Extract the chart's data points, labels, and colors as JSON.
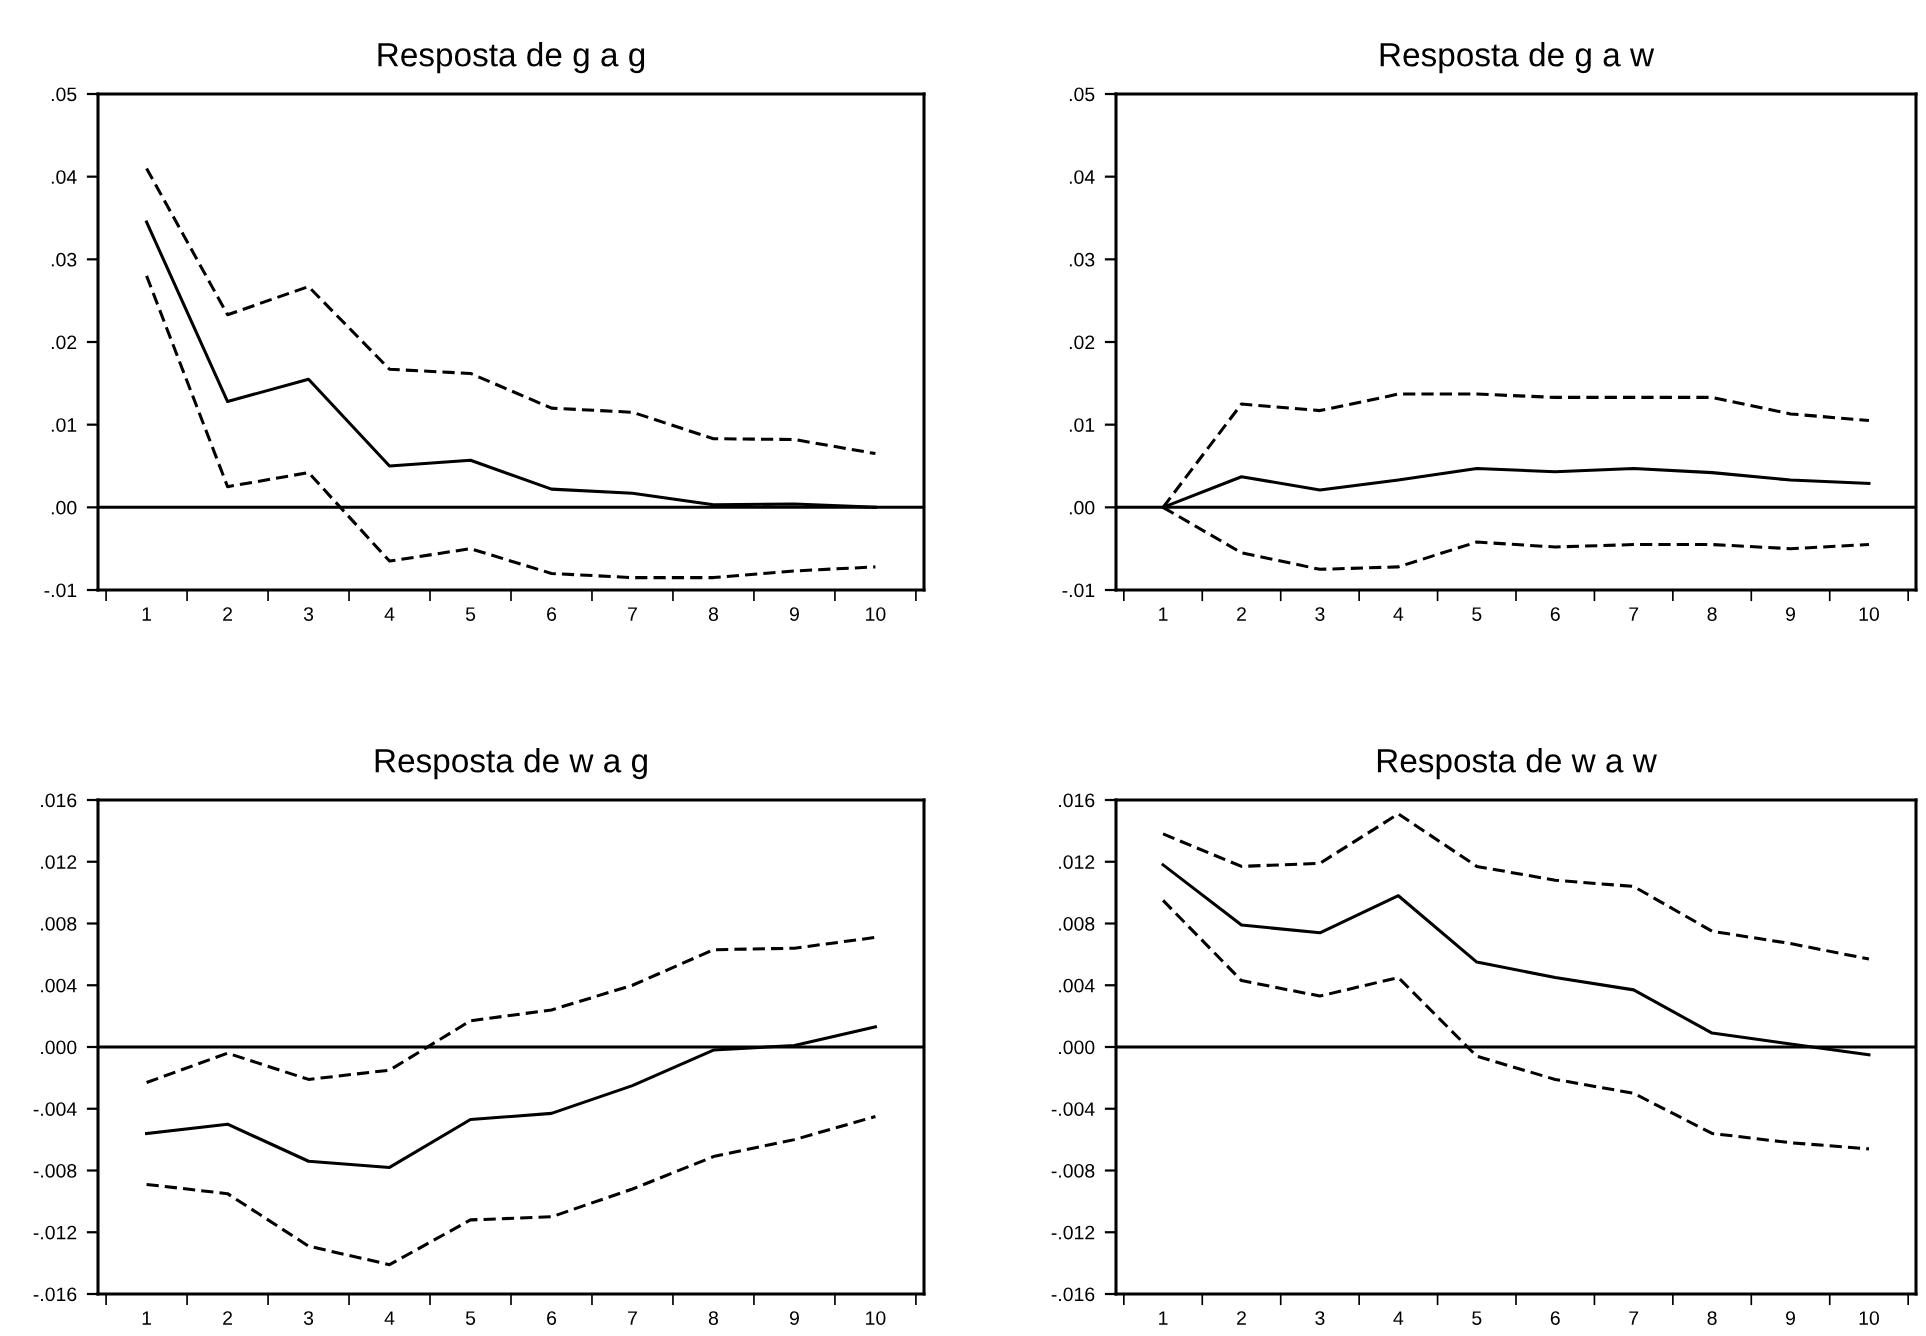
{
  "chart_data": [
    {
      "type": "line",
      "title": "Resposta de g a g",
      "categories": [
        "1",
        "2",
        "3",
        "4",
        "5",
        "6",
        "7",
        "8",
        "9",
        "10"
      ],
      "series": [
        {
          "color": "#000000",
          "line_style": "solid",
          "values": [
            0.0345,
            0.0128,
            0.0155,
            0.005,
            0.0057,
            0.0022,
            0.0017,
            0.0003,
            0.0004,
            0.0
          ]
        },
        {
          "color": "#000000",
          "line_style": "dashed",
          "values": [
            0.041,
            0.0233,
            0.0267,
            0.0167,
            0.0162,
            0.012,
            0.0115,
            0.0083,
            0.0082,
            0.0065
          ]
        },
        {
          "color": "#000000",
          "line_style": "dashed",
          "values": [
            0.028,
            0.0025,
            0.0042,
            -0.0065,
            -0.005,
            -0.008,
            -0.0085,
            -0.0085,
            -0.0077,
            -0.0072
          ]
        }
      ],
      "ylim": [
        -0.01,
        0.05
      ],
      "yticks": [
        {
          "value": -0.01,
          "label": "-.01"
        },
        {
          "value": 0,
          "label": ".00"
        },
        {
          "value": 0.01,
          "label": ".01"
        },
        {
          "value": 0.02,
          "label": ".02"
        },
        {
          "value": 0.03,
          "label": ".03"
        },
        {
          "value": 0.04,
          "label": ".04"
        },
        {
          "value": 0.05,
          "label": ".05"
        }
      ],
      "ref_lines": [
        {
          "axis": "y",
          "value": 0,
          "color": "#000000",
          "line_style": "solid"
        }
      ],
      "grid": false,
      "legend": false
    },
    {
      "type": "line",
      "title": "Resposta de g a w",
      "categories": [
        "1",
        "2",
        "3",
        "4",
        "5",
        "6",
        "7",
        "8",
        "9",
        "10"
      ],
      "series": [
        {
          "color": "#000000",
          "line_style": "solid",
          "values": [
            0.0,
            0.0037,
            0.0021,
            0.0033,
            0.0047,
            0.0043,
            0.0047,
            0.0042,
            0.0033,
            0.0029
          ]
        },
        {
          "color": "#000000",
          "line_style": "dashed",
          "values": [
            0.0,
            0.0125,
            0.0117,
            0.0137,
            0.0137,
            0.0133,
            0.0133,
            0.0133,
            0.0113,
            0.0105
          ]
        },
        {
          "color": "#000000",
          "line_style": "dashed",
          "values": [
            0.0,
            -0.0055,
            -0.0075,
            -0.0072,
            -0.0042,
            -0.0048,
            -0.0045,
            -0.0045,
            -0.005,
            -0.0045
          ]
        }
      ],
      "ylim": [
        -0.01,
        0.05
      ],
      "yticks": [
        {
          "value": -0.01,
          "label": "-.01"
        },
        {
          "value": 0,
          "label": ".00"
        },
        {
          "value": 0.01,
          "label": ".01"
        },
        {
          "value": 0.02,
          "label": ".02"
        },
        {
          "value": 0.03,
          "label": ".03"
        },
        {
          "value": 0.04,
          "label": ".04"
        },
        {
          "value": 0.05,
          "label": ".05"
        }
      ],
      "ref_lines": [
        {
          "axis": "y",
          "value": 0,
          "color": "#000000",
          "line_style": "solid"
        }
      ],
      "grid": false,
      "legend": false
    },
    {
      "type": "line",
      "title": "Resposta de w a g",
      "categories": [
        "1",
        "2",
        "3",
        "4",
        "5",
        "6",
        "7",
        "8",
        "9",
        "10"
      ],
      "series": [
        {
          "color": "#000000",
          "line_style": "solid",
          "values": [
            -0.0056,
            -0.005,
            -0.0074,
            -0.0078,
            -0.0047,
            -0.0043,
            -0.0025,
            -0.0002,
            0.0001,
            0.0013
          ]
        },
        {
          "color": "#000000",
          "line_style": "dashed",
          "values": [
            -0.0023,
            -0.0004,
            -0.0021,
            -0.0015,
            0.0017,
            0.0024,
            0.004,
            0.0063,
            0.0064,
            0.0071
          ]
        },
        {
          "color": "#000000",
          "line_style": "dashed",
          "values": [
            -0.0089,
            -0.0095,
            -0.0129,
            -0.0141,
            -0.0112,
            -0.011,
            -0.0092,
            -0.0071,
            -0.006,
            -0.0045
          ]
        }
      ],
      "ylim": [
        -0.016,
        0.016
      ],
      "yticks": [
        {
          "value": -0.016,
          "label": "-.016"
        },
        {
          "value": -0.012,
          "label": "-.012"
        },
        {
          "value": -0.008,
          "label": "-.008"
        },
        {
          "value": -0.004,
          "label": "-.004"
        },
        {
          "value": 0,
          "label": ".000"
        },
        {
          "value": 0.004,
          "label": ".004"
        },
        {
          "value": 0.008,
          "label": ".008"
        },
        {
          "value": 0.012,
          "label": ".012"
        },
        {
          "value": 0.016,
          "label": ".016"
        }
      ],
      "ref_lines": [
        {
          "axis": "y",
          "value": 0,
          "color": "#000000",
          "line_style": "solid"
        }
      ],
      "grid": false,
      "legend": false
    },
    {
      "type": "line",
      "title": "Resposta de w a w",
      "categories": [
        "1",
        "2",
        "3",
        "4",
        "5",
        "6",
        "7",
        "8",
        "9",
        "10"
      ],
      "series": [
        {
          "color": "#000000",
          "line_style": "solid",
          "values": [
            0.0118,
            0.0079,
            0.0074,
            0.0098,
            0.0055,
            0.0045,
            0.0037,
            0.0009,
            0.0002,
            -0.0005
          ]
        },
        {
          "color": "#000000",
          "line_style": "dashed",
          "values": [
            0.0138,
            0.0117,
            0.0119,
            0.0151,
            0.0117,
            0.0108,
            0.0104,
            0.0075,
            0.0067,
            0.0057
          ]
        },
        {
          "color": "#000000",
          "line_style": "dashed",
          "values": [
            0.0095,
            0.0043,
            0.0033,
            0.0045,
            -0.0006,
            -0.0021,
            -0.003,
            -0.0056,
            -0.0062,
            -0.0066
          ]
        }
      ],
      "ylim": [
        -0.016,
        0.016
      ],
      "yticks": [
        {
          "value": -0.016,
          "label": "-.016"
        },
        {
          "value": -0.012,
          "label": "-.012"
        },
        {
          "value": -0.008,
          "label": "-.008"
        },
        {
          "value": -0.004,
          "label": "-.004"
        },
        {
          "value": 0,
          "label": ".000"
        },
        {
          "value": 0.004,
          "label": ".004"
        },
        {
          "value": 0.008,
          "label": ".008"
        },
        {
          "value": 0.012,
          "label": ".012"
        },
        {
          "value": 0.016,
          "label": ".016"
        }
      ],
      "ref_lines": [
        {
          "axis": "y",
          "value": 0,
          "color": "#000000",
          "line_style": "solid"
        }
      ],
      "grid": false,
      "legend": false
    }
  ]
}
